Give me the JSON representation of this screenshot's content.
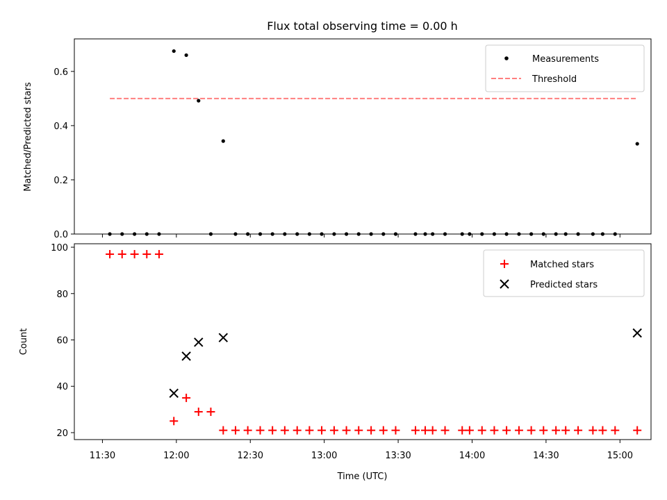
{
  "chart_data": [
    {
      "type": "scatter",
      "title": "Flux total observing time = 0.00 h",
      "xlabel": "",
      "ylabel": "Matched/Predicted stars",
      "ylim": [
        0.0,
        0.72
      ],
      "yticks": [
        0.0,
        0.2,
        0.4,
        0.6
      ],
      "ytick_labels": [
        "0.0",
        "0.2",
        "0.4",
        "0.6"
      ],
      "xlim": [
        11.31,
        15.21
      ],
      "legend": "top-right",
      "threshold": {
        "name": "Threshold",
        "value": 0.5,
        "x_range": [
          11.55,
          15.12
        ],
        "color": "#ff7f7f"
      },
      "series": [
        {
          "name": "Measurements",
          "color": "#000000",
          "x": [
            11.55,
            11.633,
            11.717,
            11.8,
            11.883,
            11.983,
            12.067,
            12.15,
            12.233,
            12.317,
            12.4,
            12.483,
            12.567,
            12.65,
            12.733,
            12.817,
            12.9,
            12.983,
            13.067,
            13.15,
            13.233,
            13.317,
            13.4,
            13.483,
            13.617,
            13.683,
            13.733,
            13.817,
            13.933,
            13.983,
            14.067,
            14.15,
            14.233,
            14.317,
            14.4,
            14.483,
            14.567,
            14.633,
            14.717,
            14.817,
            14.883,
            14.967,
            15.117
          ],
          "y": [
            0,
            0,
            0,
            0,
            0,
            0.675,
            0.66,
            0.492,
            0,
            0.343,
            0,
            0,
            0,
            0,
            0,
            0,
            0,
            0,
            0,
            0,
            0,
            0,
            0,
            0,
            0,
            0,
            0,
            0,
            0,
            0,
            0,
            0,
            0,
            0,
            0,
            0,
            0,
            0,
            0,
            0,
            0,
            0,
            0.333
          ]
        }
      ]
    },
    {
      "type": "scatter",
      "title": "",
      "xlabel": "Time (UTC)",
      "ylabel": "Count",
      "ylim": [
        17,
        101.5
      ],
      "yticks": [
        20,
        40,
        60,
        80,
        100
      ],
      "ytick_labels": [
        "20",
        "40",
        "60",
        "80",
        "100"
      ],
      "xlim": [
        11.31,
        15.21
      ],
      "xticks": [
        11.5,
        12.0,
        12.5,
        13.0,
        13.5,
        14.0,
        14.5,
        15.0
      ],
      "xtick_labels": [
        "11:30",
        "12:00",
        "12:30",
        "13:00",
        "13:30",
        "14:00",
        "14:30",
        "15:00"
      ],
      "legend": "top-right",
      "series": [
        {
          "name": "Matched stars",
          "marker": "plus",
          "color": "#ff0000",
          "x": [
            11.55,
            11.633,
            11.717,
            11.8,
            11.883,
            11.983,
            12.067,
            12.15,
            12.233,
            12.317,
            12.4,
            12.483,
            12.567,
            12.65,
            12.733,
            12.817,
            12.9,
            12.983,
            13.067,
            13.15,
            13.233,
            13.317,
            13.4,
            13.483,
            13.617,
            13.683,
            13.733,
            13.817,
            13.933,
            13.983,
            14.067,
            14.15,
            14.233,
            14.317,
            14.4,
            14.483,
            14.567,
            14.633,
            14.717,
            14.817,
            14.883,
            14.967,
            15.117
          ],
          "y": [
            97,
            97,
            97,
            97,
            97,
            25,
            35,
            29,
            29,
            21,
            21,
            21,
            21,
            21,
            21,
            21,
            21,
            21,
            21,
            21,
            21,
            21,
            21,
            21,
            21,
            21,
            21,
            21,
            21,
            21,
            21,
            21,
            21,
            21,
            21,
            21,
            21,
            21,
            21,
            21,
            21,
            21,
            21
          ]
        },
        {
          "name": "Predicted stars",
          "marker": "x",
          "color": "#000000",
          "x": [
            11.983,
            12.067,
            12.15,
            12.317,
            15.117
          ],
          "y": [
            37,
            53,
            59,
            61,
            63
          ]
        }
      ]
    }
  ]
}
